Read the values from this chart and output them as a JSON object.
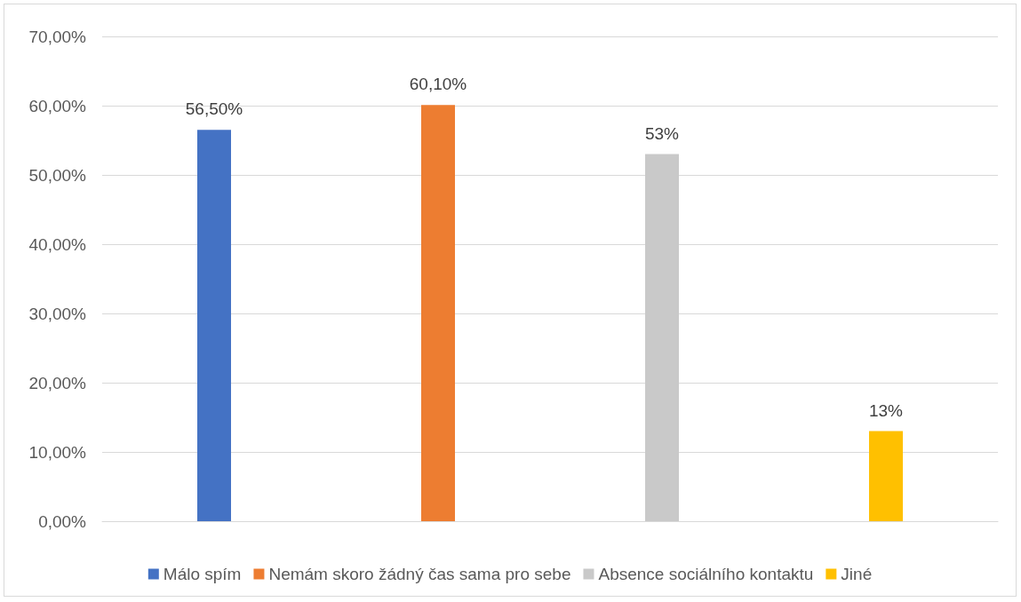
{
  "chart_data": {
    "type": "bar",
    "categories": [
      null,
      null,
      null,
      null
    ],
    "series": [
      {
        "name": "Málo spím",
        "color": "#4472c4",
        "values": [
          56.5,
          null,
          null,
          null
        ],
        "value_labels": [
          "56,50%",
          null,
          null,
          null
        ]
      },
      {
        "name": "Nemám skoro žádný čas sama pro sebe",
        "color": "#ed7d31",
        "values": [
          null,
          60.1,
          null,
          null
        ],
        "value_labels": [
          null,
          "60,10%",
          null,
          null
        ]
      },
      {
        "name": "Absence sociálního kontaktu",
        "color": "#c9c9c9",
        "values": [
          null,
          null,
          53,
          null
        ],
        "value_labels": [
          null,
          null,
          "53%",
          null
        ]
      },
      {
        "name": "Jiné",
        "color": "#ffc000",
        "values": [
          null,
          null,
          null,
          13
        ],
        "value_labels": [
          null,
          null,
          null,
          "13%"
        ]
      }
    ],
    "ylim": [
      0,
      70
    ],
    "yticks": [
      {
        "value": 0,
        "label": "0,00%"
      },
      {
        "value": 10,
        "label": "10,00%"
      },
      {
        "value": 20,
        "label": "20,00%"
      },
      {
        "value": 30,
        "label": "30,00%"
      },
      {
        "value": 40,
        "label": "40,00%"
      },
      {
        "value": 50,
        "label": "50,00%"
      },
      {
        "value": 60,
        "label": "60,00%"
      },
      {
        "value": 70,
        "label": "70,00%"
      }
    ],
    "grid": "y",
    "legend": "bottom"
  }
}
